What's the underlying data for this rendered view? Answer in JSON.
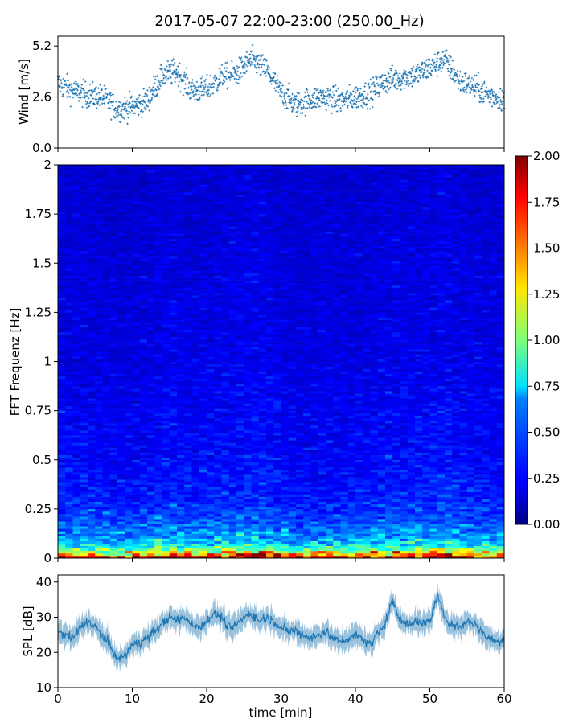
{
  "title": "2017-05-07 22:00-23:00 (250.00_Hz)",
  "colors": {
    "wind": "#1f77b4",
    "spl": "#1f77b4",
    "axis": "#000000"
  },
  "chart_data": [
    {
      "type": "scatter",
      "name": "wind",
      "ylabel": "Wind [m/s]",
      "xlim": [
        0,
        60
      ],
      "ylim": [
        0,
        5.7
      ],
      "yticks": [
        "0.0",
        "2.6",
        "5.2"
      ],
      "ytick_values": [
        0,
        2.6,
        5.2
      ],
      "x": [
        0,
        2,
        4,
        6,
        8,
        10,
        12,
        14,
        16,
        18,
        20,
        22,
        24,
        26,
        28,
        30,
        32,
        34,
        36,
        38,
        40,
        42,
        44,
        46,
        48,
        50,
        52,
        54,
        56,
        58,
        60
      ],
      "values": [
        3.3,
        2.9,
        2.7,
        2.6,
        2.0,
        2.1,
        2.4,
        3.7,
        3.9,
        2.9,
        3.0,
        3.6,
        3.8,
        4.5,
        4.0,
        2.8,
        2.2,
        2.5,
        2.6,
        2.4,
        2.6,
        2.8,
        3.4,
        3.6,
        3.7,
        4.1,
        4.5,
        3.4,
        3.1,
        2.7,
        2.5
      ]
    },
    {
      "type": "heatmap",
      "name": "spectrogram",
      "ylabel": "FFT Frequenz [Hz]",
      "xlim": [
        0,
        60
      ],
      "ylim": [
        0,
        2
      ],
      "yticks": [
        "0",
        "0.25",
        "0.5",
        "0.75",
        "1",
        "1.25",
        "1.5",
        "1.75",
        "2"
      ],
      "ytick_values": [
        0,
        0.25,
        0.5,
        0.75,
        1,
        1.25,
        1.5,
        1.75,
        2
      ],
      "colormap": "jet",
      "colorbar": {
        "range": [
          0,
          2
        ],
        "ticks": [
          "0.00",
          "0.25",
          "0.50",
          "0.75",
          "1.00",
          "1.25",
          "1.50",
          "1.75",
          "2.00"
        ],
        "tick_values": [
          0,
          0.25,
          0.5,
          0.75,
          1,
          1.25,
          1.5,
          1.75,
          2
        ]
      },
      "freq_profile": [
        {
          "f": 0.0,
          "v": 2.0
        },
        {
          "f": 0.02,
          "v": 1.4
        },
        {
          "f": 0.05,
          "v": 0.8
        },
        {
          "f": 0.1,
          "v": 0.55
        },
        {
          "f": 0.2,
          "v": 0.38
        },
        {
          "f": 0.3,
          "v": 0.3
        },
        {
          "f": 0.5,
          "v": 0.25
        },
        {
          "f": 1.0,
          "v": 0.2
        },
        {
          "f": 2.0,
          "v": 0.16
        }
      ]
    },
    {
      "type": "line",
      "name": "spl",
      "ylabel": "SPL [dB]",
      "xlabel": "time [min]",
      "xlim": [
        0,
        60
      ],
      "ylim": [
        10,
        42
      ],
      "xticks": [
        "0",
        "10",
        "20",
        "30",
        "40",
        "50",
        "60"
      ],
      "xtick_values": [
        0,
        10,
        20,
        30,
        40,
        50,
        60
      ],
      "yticks": [
        "10",
        "20",
        "30",
        "40"
      ],
      "ytick_values": [
        10,
        20,
        30,
        40
      ],
      "x": [
        0,
        1,
        2,
        3,
        4,
        5,
        6,
        7,
        8,
        9,
        10,
        11,
        12,
        13,
        14,
        15,
        16,
        17,
        18,
        19,
        20,
        21,
        22,
        23,
        24,
        25,
        26,
        27,
        28,
        29,
        30,
        31,
        32,
        33,
        34,
        35,
        36,
        37,
        38,
        39,
        40,
        41,
        42,
        43,
        44,
        45,
        46,
        47,
        48,
        49,
        50,
        51,
        52,
        53,
        54,
        55,
        56,
        57,
        58,
        59,
        60
      ],
      "values": [
        26,
        25,
        24,
        27,
        29,
        27,
        25,
        22,
        18,
        19,
        22,
        23,
        24,
        26,
        28,
        30,
        29,
        30,
        28,
        27,
        29,
        31,
        30,
        27,
        28,
        30,
        31,
        29,
        30,
        29,
        27,
        26,
        26,
        25,
        24,
        25,
        26,
        24,
        23,
        24,
        25,
        24,
        22,
        26,
        28,
        35,
        29,
        28,
        29,
        28,
        29,
        36,
        30,
        28,
        27,
        29,
        28,
        26,
        24,
        23,
        24
      ]
    }
  ]
}
